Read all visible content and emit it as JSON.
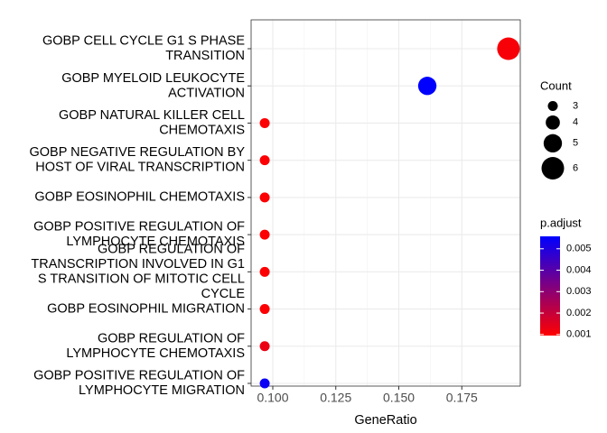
{
  "chart_data": {
    "type": "dot",
    "x_label": "GeneRatio",
    "categories": [
      [
        "GOBP CELL CYCLE G1 S PHASE",
        "TRANSITION"
      ],
      [
        "GOBP MYELOID LEUKOCYTE",
        "ACTIVATION"
      ],
      [
        "GOBP NATURAL KILLER CELL",
        "CHEMOTAXIS"
      ],
      [
        "GOBP NEGATIVE REGULATION BY",
        "HOST OF VIRAL TRANSCRIPTION"
      ],
      [
        "GOBP EOSINOPHIL CHEMOTAXIS"
      ],
      [
        "GOBP POSITIVE REGULATION OF",
        "LYMPHOCYTE CHEMOTAXIS"
      ],
      [
        "GOBP REGULATION OF",
        "TRANSCRIPTION INVOLVED IN G1",
        "S TRANSITION OF MITOTIC CELL",
        "CYCLE"
      ],
      [
        "GOBP EOSINOPHIL MIGRATION"
      ],
      [
        "GOBP REGULATION OF",
        "LYMPHOCYTE CHEMOTAXIS"
      ],
      [
        "GOBP POSITIVE REGULATION OF",
        "LYMPHOCYTE MIGRATION"
      ]
    ],
    "values": [
      0.1935,
      0.1613,
      0.0968,
      0.0968,
      0.0968,
      0.0968,
      0.0968,
      0.0968,
      0.0968,
      0.0968
    ],
    "sizes": [
      6,
      5,
      3,
      3,
      3,
      3,
      3,
      3,
      3,
      3
    ],
    "p_adjust": [
      0.0011,
      0.0057,
      0.001,
      0.001,
      0.001,
      0.001,
      0.001,
      0.001,
      0.0013,
      0.0054
    ],
    "xlim": [
      0.0914,
      0.1982
    ],
    "xticks": [
      {
        "value": 0.1,
        "label": "0.100"
      },
      {
        "value": 0.125,
        "label": "0.125"
      },
      {
        "value": 0.15,
        "label": "0.150"
      },
      {
        "value": 0.175,
        "label": "0.175"
      }
    ],
    "grid": true,
    "size_legend": {
      "title": "Count",
      "lim": [
        3,
        6
      ],
      "ticks": [
        3,
        4,
        5,
        6
      ]
    },
    "color_legend": {
      "title": "p.adjust",
      "lim": [
        0.00095,
        0.00558
      ],
      "low_color": "#ff0000",
      "high_color": "#0000ff",
      "ticks": [
        0.001,
        0.002,
        0.003,
        0.004,
        0.005
      ]
    }
  }
}
